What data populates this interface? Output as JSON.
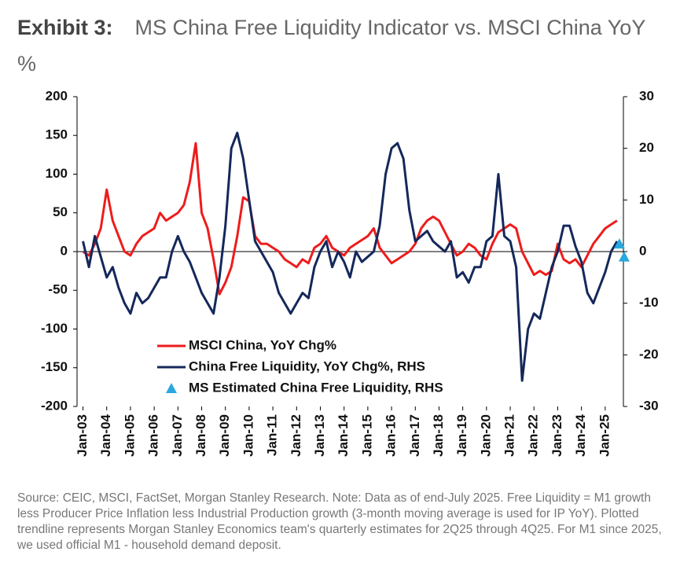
{
  "chart_data": {
    "type": "line",
    "title_label": "Exhibit 3:",
    "title": "MS China Free Liquidity Indicator vs. MSCI China YoY %",
    "note": "Source: CEIC, MSCI, FactSet, Morgan Stanley Research. Note: Data as of end-July 2025. Free Liquidity = M1 growth less Producer Price Inflation less Industrial Production growth (3-month moving average is used for IP YoY). Plotted trendline represents Morgan Stanley Economics team's quarterly estimates for 2Q25 through 4Q25. For M1 since 2025, we used official M1 - household demand deposit.",
    "x": [
      2003,
      2003.25,
      2003.5,
      2003.75,
      2004,
      2004.25,
      2004.5,
      2004.75,
      2005,
      2005.25,
      2005.5,
      2005.75,
      2006,
      2006.25,
      2006.5,
      2006.75,
      2007,
      2007.25,
      2007.5,
      2007.75,
      2008,
      2008.25,
      2008.5,
      2008.75,
      2009,
      2009.25,
      2009.5,
      2009.75,
      2010,
      2010.25,
      2010.5,
      2010.75,
      2011,
      2011.25,
      2011.5,
      2011.75,
      2012,
      2012.25,
      2012.5,
      2012.75,
      2013,
      2013.25,
      2013.5,
      2013.75,
      2014,
      2014.25,
      2014.5,
      2014.75,
      2015,
      2015.25,
      2015.5,
      2015.75,
      2016,
      2016.25,
      2016.5,
      2016.75,
      2017,
      2017.25,
      2017.5,
      2017.75,
      2018,
      2018.25,
      2018.5,
      2018.75,
      2019,
      2019.25,
      2019.5,
      2019.75,
      2020,
      2020.25,
      2020.5,
      2020.75,
      2021,
      2021.25,
      2021.5,
      2021.75,
      2022,
      2022.25,
      2022.5,
      2022.75,
      2023,
      2023.25,
      2023.5,
      2023.75,
      2024,
      2024.25,
      2024.5,
      2024.75,
      2025,
      2025.25,
      2025.5
    ],
    "series": [
      {
        "name": "MSCI China, YoY Chg%",
        "color": "#ee1c1c",
        "axis": "y",
        "values": [
          0,
          -5,
          10,
          30,
          80,
          40,
          20,
          0,
          -5,
          10,
          20,
          25,
          30,
          50,
          40,
          45,
          50,
          60,
          90,
          140,
          50,
          30,
          -10,
          -55,
          -40,
          -20,
          20,
          70,
          65,
          20,
          10,
          10,
          5,
          0,
          -10,
          -15,
          -20,
          -10,
          -15,
          5,
          10,
          20,
          5,
          0,
          -5,
          5,
          10,
          15,
          20,
          30,
          5,
          -5,
          -15,
          -10,
          -5,
          0,
          10,
          30,
          40,
          45,
          40,
          25,
          10,
          -5,
          0,
          10,
          5,
          -5,
          -10,
          10,
          25,
          30,
          35,
          30,
          0,
          -15,
          -30,
          -25,
          -30,
          -25,
          10,
          -10,
          -15,
          -10,
          -20,
          -5,
          10,
          20,
          30,
          35,
          40
        ]
      },
      {
        "name": "China Free Liquidity, YoY Chg%, RHS",
        "color": "#14285a",
        "axis": "y2",
        "values": [
          2,
          -3,
          3,
          -1,
          -5,
          -3,
          -7,
          -10,
          -12,
          -8,
          -10,
          -9,
          -7,
          -5,
          -5,
          0,
          3,
          0,
          -2,
          -5,
          -8,
          -10,
          -12,
          -5,
          5,
          20,
          23,
          18,
          10,
          2,
          0,
          -2,
          -4,
          -8,
          -10,
          -12,
          -10,
          -8,
          -9,
          -3,
          0,
          2,
          -3,
          0,
          -2,
          -5,
          0,
          -2,
          -1,
          0,
          5,
          15,
          20,
          21,
          18,
          8,
          2,
          3,
          4,
          2,
          1,
          0,
          2,
          -5,
          -4,
          -6,
          -3,
          -3,
          2,
          3,
          15,
          3,
          2,
          -3,
          -25,
          -15,
          -12,
          -13,
          -8,
          -3,
          0,
          5,
          5,
          1,
          -2,
          -8,
          -10,
          -7,
          -4,
          0,
          2
        ]
      },
      {
        "name": "MS Estimated China Free Liquidity, RHS",
        "color": "#29a8e0",
        "axis": "y2",
        "marker": "triangle",
        "x": [
          2025.6,
          2025.8
        ],
        "values": [
          1.5,
          -1
        ]
      }
    ],
    "xlim": [
      2002.75,
      2025.9
    ],
    "xticks": [
      {
        "value": 2003,
        "label": "Jan-03"
      },
      {
        "value": 2004,
        "label": "Jan-04"
      },
      {
        "value": 2005,
        "label": "Jan-05"
      },
      {
        "value": 2006,
        "label": "Jan-06"
      },
      {
        "value": 2007,
        "label": "Jan-07"
      },
      {
        "value": 2008,
        "label": "Jan-08"
      },
      {
        "value": 2009,
        "label": "Jan-09"
      },
      {
        "value": 2010,
        "label": "Jan-10"
      },
      {
        "value": 2011,
        "label": "Jan-11"
      },
      {
        "value": 2012,
        "label": "Jan-12"
      },
      {
        "value": 2013,
        "label": "Jan-13"
      },
      {
        "value": 2014,
        "label": "Jan-14"
      },
      {
        "value": 2015,
        "label": "Jan-15"
      },
      {
        "value": 2016,
        "label": "Jan-16"
      },
      {
        "value": 2017,
        "label": "Jan-17"
      },
      {
        "value": 2018,
        "label": "Jan-18"
      },
      {
        "value": 2019,
        "label": "Jan-19"
      },
      {
        "value": 2020,
        "label": "Jan-20"
      },
      {
        "value": 2021,
        "label": "Jan-21"
      },
      {
        "value": 2022,
        "label": "Jan-22"
      },
      {
        "value": 2023,
        "label": "Jan-23"
      },
      {
        "value": 2024,
        "label": "Jan-24"
      },
      {
        "value": 2025,
        "label": "Jan-25"
      }
    ],
    "ylim": [
      -200,
      200
    ],
    "yticks": [
      -200,
      -150,
      -100,
      -50,
      0,
      50,
      100,
      150,
      200
    ],
    "y2lim": [
      -30,
      30
    ],
    "y2ticks": [
      -30,
      -20,
      -10,
      0,
      10,
      20,
      30
    ],
    "grid": false
  }
}
